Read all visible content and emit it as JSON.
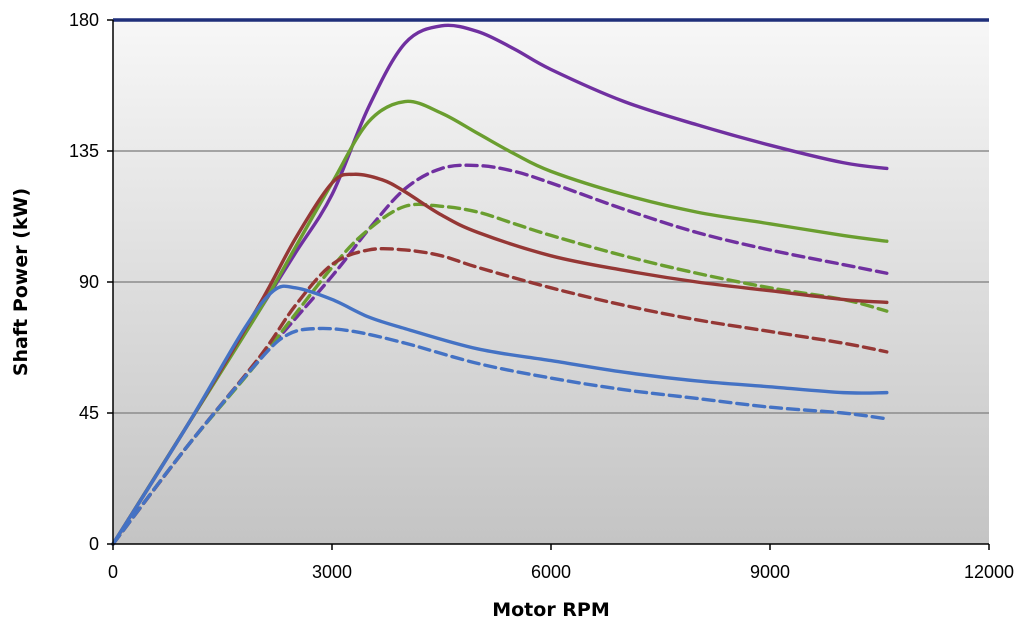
{
  "chart_data": {
    "type": "line",
    "title": "",
    "xlabel": "Motor RPM",
    "ylabel": "Shaft Power (kW)",
    "xlim": [
      0,
      12000
    ],
    "ylim": [
      0,
      180
    ],
    "x_ticks": [
      "0",
      "3000",
      "6000",
      "9000",
      "12000"
    ],
    "y_ticks": [
      "0",
      "45",
      "90",
      "135",
      "180"
    ],
    "grid": "horizontal",
    "legend": "none",
    "series": [
      {
        "color": "#7030A0",
        "dash": false,
        "points": [
          [
            0,
            0
          ],
          [
            1000,
            40
          ],
          [
            2000,
            80
          ],
          [
            2500,
            100
          ],
          [
            3000,
            120
          ],
          [
            3500,
            150
          ],
          [
            4000,
            172
          ],
          [
            4500,
            178
          ],
          [
            5000,
            176
          ],
          [
            5500,
            170
          ],
          [
            6000,
            163
          ],
          [
            7000,
            152
          ],
          [
            8000,
            144
          ],
          [
            9000,
            137
          ],
          [
            10000,
            131
          ],
          [
            10600,
            129
          ]
        ]
      },
      {
        "color": "#7030A0",
        "dash": true,
        "points": [
          [
            0,
            0
          ],
          [
            1000,
            33
          ],
          [
            2000,
            63
          ],
          [
            3000,
            92
          ],
          [
            3500,
            108
          ],
          [
            4000,
            122
          ],
          [
            4500,
            129
          ],
          [
            5000,
            130
          ],
          [
            5500,
            128
          ],
          [
            6000,
            124
          ],
          [
            7000,
            115
          ],
          [
            8000,
            107
          ],
          [
            9000,
            101
          ],
          [
            10000,
            96
          ],
          [
            10600,
            93
          ]
        ]
      },
      {
        "color": "#6A9E2F",
        "dash": false,
        "points": [
          [
            0,
            0
          ],
          [
            1000,
            40
          ],
          [
            2000,
            80
          ],
          [
            2500,
            102
          ],
          [
            3000,
            124
          ],
          [
            3500,
            145
          ],
          [
            4000,
            152
          ],
          [
            4500,
            148
          ],
          [
            5000,
            141
          ],
          [
            5500,
            134
          ],
          [
            6000,
            128
          ],
          [
            7000,
            120
          ],
          [
            8000,
            114
          ],
          [
            9000,
            110
          ],
          [
            10000,
            106
          ],
          [
            10600,
            104
          ]
        ]
      },
      {
        "color": "#6A9E2F",
        "dash": true,
        "points": [
          [
            0,
            0
          ],
          [
            1000,
            33
          ],
          [
            2000,
            63
          ],
          [
            3000,
            95
          ],
          [
            3500,
            108
          ],
          [
            4000,
            116
          ],
          [
            4500,
            116
          ],
          [
            5000,
            114
          ],
          [
            5500,
            110
          ],
          [
            6000,
            106
          ],
          [
            7000,
            99
          ],
          [
            8000,
            93
          ],
          [
            9000,
            88
          ],
          [
            10000,
            84
          ],
          [
            10600,
            80
          ]
        ]
      },
      {
        "color": "#953735",
        "dash": false,
        "points": [
          [
            0,
            0
          ],
          [
            1000,
            40
          ],
          [
            2000,
            82
          ],
          [
            2500,
            105
          ],
          [
            3000,
            124
          ],
          [
            3300,
            127
          ],
          [
            3700,
            125
          ],
          [
            4000,
            121
          ],
          [
            4500,
            113
          ],
          [
            5000,
            107
          ],
          [
            6000,
            99
          ],
          [
            7000,
            94
          ],
          [
            8000,
            90
          ],
          [
            9000,
            87
          ],
          [
            10000,
            84
          ],
          [
            10600,
            83
          ]
        ]
      },
      {
        "color": "#953735",
        "dash": true,
        "points": [
          [
            0,
            0
          ],
          [
            1000,
            33
          ],
          [
            2000,
            64
          ],
          [
            2500,
            82
          ],
          [
            3000,
            96
          ],
          [
            3500,
            101
          ],
          [
            4000,
            101
          ],
          [
            4500,
            99
          ],
          [
            5000,
            95
          ],
          [
            6000,
            88
          ],
          [
            7000,
            82
          ],
          [
            8000,
            77
          ],
          [
            9000,
            73
          ],
          [
            10000,
            69
          ],
          [
            10600,
            66
          ]
        ]
      },
      {
        "color": "#4472C4",
        "dash": false,
        "points": [
          [
            0,
            0
          ],
          [
            1000,
            40
          ],
          [
            1800,
            74
          ],
          [
            2200,
            87
          ],
          [
            2500,
            88
          ],
          [
            3000,
            84
          ],
          [
            3500,
            78
          ],
          [
            4000,
            74
          ],
          [
            5000,
            67
          ],
          [
            6000,
            63
          ],
          [
            7000,
            59
          ],
          [
            8000,
            56
          ],
          [
            9000,
            54
          ],
          [
            10000,
            52
          ],
          [
            10600,
            52
          ]
        ]
      },
      {
        "color": "#4472C4",
        "dash": true,
        "points": [
          [
            0,
            0
          ],
          [
            1000,
            33
          ],
          [
            2000,
            63
          ],
          [
            2400,
            72
          ],
          [
            2800,
            74
          ],
          [
            3300,
            73
          ],
          [
            4000,
            69
          ],
          [
            5000,
            62
          ],
          [
            6000,
            57
          ],
          [
            7000,
            53
          ],
          [
            8000,
            50
          ],
          [
            9000,
            47
          ],
          [
            10000,
            45
          ],
          [
            10600,
            43
          ]
        ]
      }
    ],
    "reference_line": {
      "y": 180,
      "color": "#1F2F7A"
    }
  }
}
